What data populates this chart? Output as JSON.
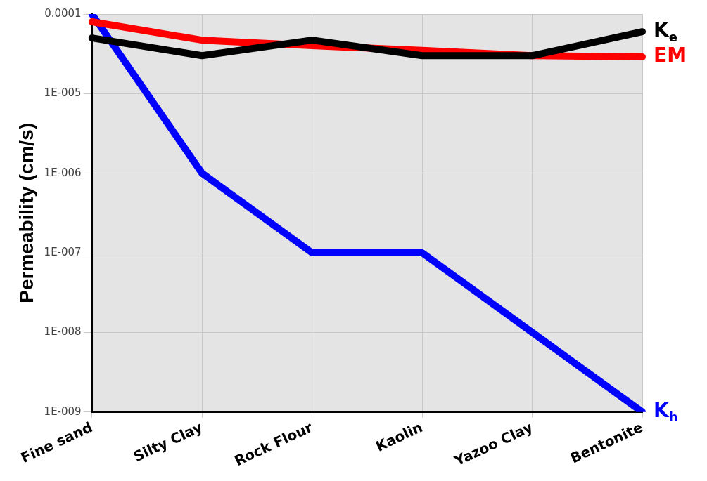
{
  "chart_data": {
    "type": "line",
    "ylabel": "Permeability (cm/s)",
    "categories": [
      "Fine sand",
      "Silty Clay",
      "Rock Flour",
      "Kaolin",
      "Yazoo Clay",
      "Bentonite"
    ],
    "series": [
      {
        "name": "K$_{e}$",
        "color": "#000000",
        "values": [
          5e-05,
          3e-05,
          4.7e-05,
          3e-05,
          3e-05,
          6e-05
        ]
      },
      {
        "name": "EM",
        "color": "#ff0000",
        "values": [
          8e-05,
          4.7e-05,
          4e-05,
          3.5e-05,
          3e-05,
          2.9e-05
        ]
      },
      {
        "name": "K$_{h}$",
        "color": "#0000ff",
        "values": [
          0.0001,
          1e-06,
          1e-07,
          1e-07,
          1e-08,
          1e-09
        ]
      }
    ],
    "log": "y",
    "ylim": [
      1e-09,
      0.0001
    ],
    "yticks": [
      {
        "value": 1e-09,
        "label": "1E-009"
      },
      {
        "value": 1e-08,
        "label": "1E-008"
      },
      {
        "value": 1e-07,
        "label": "1E-007"
      },
      {
        "value": 1e-06,
        "label": "1E-006"
      },
      {
        "value": 1e-05,
        "label": "1E-005"
      },
      0.0001
    ],
    "grid": true,
    "legend": false,
    "marker": "none",
    "line_style": "solid"
  }
}
